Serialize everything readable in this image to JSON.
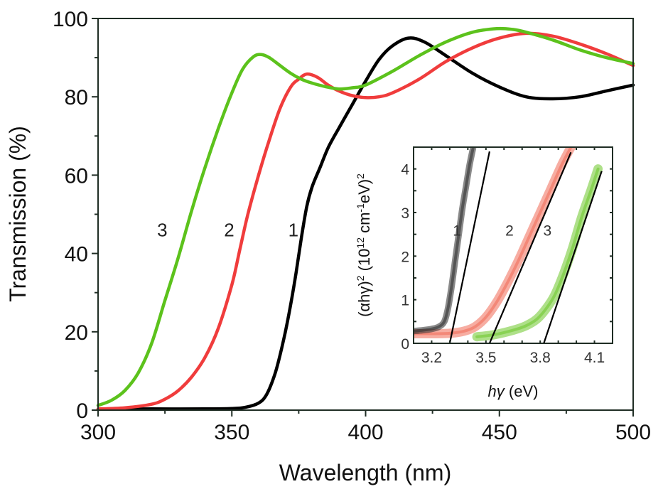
{
  "chart_data": [
    {
      "id": "main",
      "type": "line",
      "title": "",
      "xlabel": "Wavelength (nm)",
      "ylabel": "Transmission (%)",
      "xlim": [
        300,
        500
      ],
      "ylim": [
        0,
        100
      ],
      "xticks": [
        300,
        350,
        400,
        450,
        500
      ],
      "yticks": [
        0,
        20,
        40,
        60,
        80,
        100
      ],
      "xtick_labels": [
        "300",
        "350",
        "400",
        "450",
        "500"
      ],
      "ytick_labels": [
        "0",
        "20",
        "40",
        "60",
        "80",
        "100"
      ],
      "grid": false,
      "series": [
        {
          "name": "1",
          "label": "1",
          "color": "#000000",
          "x": [
            300,
            320,
            340,
            350,
            355,
            360,
            363,
            366,
            368,
            370,
            372,
            374,
            376,
            378,
            380,
            383,
            386,
            390,
            395,
            400,
            405,
            410,
            416,
            422,
            430,
            440,
            450,
            460,
            470,
            480,
            490,
            500
          ],
          "y": [
            0.2,
            0.3,
            0.3,
            0.4,
            0.7,
            1.8,
            4,
            9,
            14,
            20,
            27,
            35,
            44,
            52,
            57,
            62,
            67,
            72,
            78,
            84,
            89.5,
            93,
            95,
            94,
            90.5,
            86,
            82.5,
            80,
            79.5,
            80,
            81.5,
            83
          ],
          "label_position": [
            372,
            47
          ]
        },
        {
          "name": "2",
          "label": "2",
          "color": "#f03c3c",
          "x": [
            300,
            310,
            320,
            325,
            330,
            335,
            340,
            345,
            350,
            353,
            356,
            360,
            364,
            368,
            372,
            375,
            378,
            382,
            386,
            390,
            395,
            400,
            405,
            410,
            420,
            430,
            440,
            450,
            460,
            470,
            480,
            490,
            500
          ],
          "y": [
            0.3,
            0.6,
            1.5,
            2.8,
            5,
            8.5,
            13.5,
            21,
            32,
            41,
            50,
            60,
            69,
            77,
            82.5,
            84.5,
            85.8,
            85,
            83,
            81.5,
            80.3,
            79.8,
            80,
            81,
            84.5,
            89,
            92.5,
            95,
            96.2,
            95.5,
            93.5,
            91,
            88
          ]
        },
        {
          "name": "3",
          "label": "3",
          "color": "#5cc21c",
          "x": [
            300,
            305,
            310,
            315,
            320,
            325,
            330,
            335,
            340,
            345,
            350,
            354,
            358,
            361,
            364,
            368,
            372,
            376,
            380,
            385,
            390,
            395,
            400,
            410,
            420,
            430,
            440,
            449,
            455,
            460,
            470,
            480,
            490,
            500
          ],
          "y": [
            1.2,
            2.5,
            5,
            9.5,
            17,
            28,
            39,
            51,
            62,
            72,
            81,
            87,
            90.2,
            90.8,
            90,
            88,
            86,
            84.5,
            83.5,
            82.6,
            82,
            82.3,
            83,
            86.5,
            90.5,
            94,
            96.5,
            97.4,
            97.2,
            96.5,
            94.5,
            92,
            90,
            88.5
          ]
        }
      ],
      "annotations": [
        {
          "text": "1",
          "x": 373,
          "y": 46
        },
        {
          "text": "2",
          "x": 349,
          "y": 46
        },
        {
          "text": "3",
          "x": 324,
          "y": 46
        }
      ]
    },
    {
      "id": "inset",
      "type": "scatter",
      "title": "",
      "xlabel_italic": "hγ",
      "xlabel_unit": " (eV)",
      "ylabel_parts": {
        "alpha_term": "(αhγ)",
        "sup1": "2",
        "mid": " (10",
        "sup2": "12",
        "cm": " cm",
        "sup3": "-1",
        "ev": "eV)",
        "sup4": "2"
      },
      "xlim": [
        3.1,
        4.2
      ],
      "ylim": [
        0,
        4.5
      ],
      "xticks": [
        3.2,
        3.5,
        3.8,
        4.1
      ],
      "xtick_labels": [
        "3.2",
        "3.5",
        "3.8",
        "4.1"
      ],
      "yticks": [
        0,
        1,
        2,
        3,
        4
      ],
      "ytick_labels": [
        "0",
        "1",
        "2",
        "3",
        "4"
      ],
      "grid": false,
      "series": [
        {
          "name": "1",
          "color": "#2a2a2a",
          "x": [
            3.1,
            3.15,
            3.2,
            3.24,
            3.27,
            3.29,
            3.31,
            3.33,
            3.35,
            3.37,
            3.39,
            3.41,
            3.43
          ],
          "y": [
            0.28,
            0.3,
            0.33,
            0.38,
            0.5,
            0.8,
            1.3,
            1.9,
            2.5,
            3.1,
            3.6,
            4.1,
            4.5
          ],
          "fit_line": {
            "x0": 3.3,
            "y0": 0,
            "x1": 3.52,
            "y1": 4.4
          }
        },
        {
          "name": "2",
          "color": "#f06a55",
          "x": [
            3.1,
            3.2,
            3.3,
            3.38,
            3.44,
            3.5,
            3.56,
            3.62,
            3.68,
            3.74,
            3.8,
            3.86,
            3.92,
            3.97
          ],
          "y": [
            0.22,
            0.22,
            0.23,
            0.28,
            0.38,
            0.6,
            0.95,
            1.4,
            1.9,
            2.45,
            3.0,
            3.55,
            4.1,
            4.5
          ],
          "fit_line": {
            "x0": 3.52,
            "y0": 0,
            "x1": 3.97,
            "y1": 4.38
          }
        },
        {
          "name": "3",
          "color": "#6cc628",
          "x": [
            3.45,
            3.55,
            3.65,
            3.72,
            3.78,
            3.83,
            3.88,
            3.93,
            3.98,
            4.03,
            4.08,
            4.12
          ],
          "y": [
            0.15,
            0.2,
            0.3,
            0.4,
            0.55,
            0.78,
            1.1,
            1.6,
            2.2,
            2.9,
            3.5,
            4.0
          ],
          "fit_line": {
            "x0": 3.82,
            "y0": 0,
            "x1": 4.14,
            "y1": 3.95
          }
        }
      ],
      "annotations": [
        {
          "text": "1",
          "x": 3.34,
          "y": 2.6
        },
        {
          "text": "2",
          "x": 3.63,
          "y": 2.6
        },
        {
          "text": "3",
          "x": 3.84,
          "y": 2.6
        }
      ],
      "band_gaps_eV": {
        "1": 3.3,
        "2": 3.52,
        "3": 3.82
      }
    }
  ]
}
